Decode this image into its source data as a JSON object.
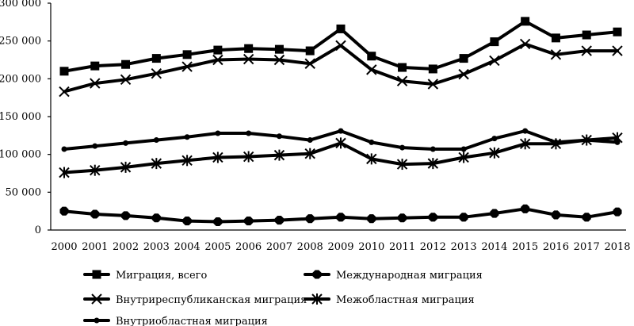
{
  "chart_data": {
    "type": "line",
    "title": "",
    "xlabel": "",
    "ylabel": "",
    "ylim": [
      0,
      300000
    ],
    "yticks": [
      0,
      50000,
      100000,
      150000,
      200000,
      250000,
      300000
    ],
    "ytick_labels": [
      "0",
      "50 000",
      "100 000",
      "150 000",
      "200 000",
      "250 000",
      "300 000"
    ],
    "x": [
      "2000",
      "2001",
      "2002",
      "2003",
      "2004",
      "2005",
      "2006",
      "2007",
      "2008",
      "2009",
      "2010",
      "2011",
      "2012",
      "2013",
      "2014",
      "2015",
      "2016",
      "2017",
      "2018"
    ],
    "grid": false,
    "legend_position": "bottom",
    "series": [
      {
        "name": "Миграция, всего",
        "marker": "square",
        "values": [
          210000,
          217000,
          219000,
          227000,
          232000,
          238000,
          240000,
          239000,
          237000,
          266000,
          230000,
          215000,
          213000,
          227000,
          249000,
          276000,
          254000,
          258000,
          262000
        ]
      },
      {
        "name": "Международная миграция",
        "marker": "octagon",
        "values": [
          25000,
          21000,
          19000,
          16000,
          12000,
          11000,
          12000,
          13000,
          15000,
          17000,
          15000,
          16000,
          17000,
          17000,
          22000,
          28000,
          20000,
          17000,
          24000
        ]
      },
      {
        "name": "Внутриреспубликанская миграция",
        "marker": "x",
        "values": [
          183000,
          194000,
          199000,
          207000,
          216000,
          225000,
          226000,
          225000,
          220000,
          244000,
          212000,
          197000,
          193000,
          206000,
          224000,
          246000,
          232000,
          237000,
          237000
        ]
      },
      {
        "name": "Межобластная миграция",
        "marker": "asterisk",
        "values": [
          76000,
          79000,
          83000,
          88000,
          92000,
          96000,
          97000,
          99000,
          101000,
          115000,
          94000,
          87000,
          88000,
          96000,
          102000,
          114000,
          114000,
          119000,
          122000
        ]
      },
      {
        "name": "Внутриобластная миграция",
        "marker": "dot",
        "values": [
          107000,
          111000,
          115000,
          119000,
          123000,
          128000,
          128000,
          124000,
          119000,
          131000,
          116000,
          109000,
          107000,
          107000,
          121000,
          131000,
          116000,
          119000,
          116000
        ]
      }
    ]
  }
}
